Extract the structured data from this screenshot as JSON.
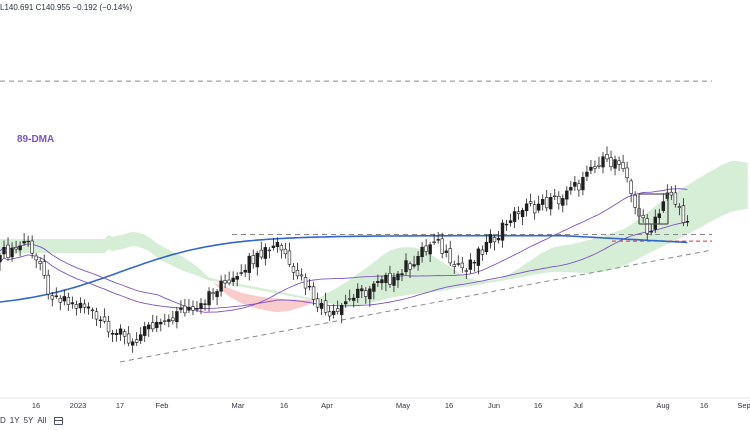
{
  "header": {
    "ohlc_text": "L140.691  C140.955  −0.192 (−0.14%)"
  },
  "toolbar": {
    "timeframes": [
      "D",
      "1Y",
      "5Y",
      "All"
    ]
  },
  "labels": {
    "ma": "89-DMA"
  },
  "colors": {
    "up": "#1e1e1e",
    "down": "#ffffff",
    "wick": "#1e1e1e",
    "ma200": "#3366cc",
    "ma_purple": "#7d54c7",
    "cloud_bull": "#cfeacf",
    "cloud_bear": "#f9c2c2",
    "dashed_gray": "#8a8a8a",
    "dashed_red": "#e03131",
    "box": "#555555"
  },
  "chart_data": {
    "type": "candlestick",
    "title": "",
    "x_tick_labels": [
      "16",
      "2023",
      "17",
      "Feb",
      "Mar",
      "16",
      "Apr",
      "May",
      "16",
      "Jun",
      "16",
      "Jul",
      "Aug",
      "16",
      "Sep"
    ],
    "y_range_approx": [
      126,
      152
    ],
    "resistance_level_approx": 151.9,
    "support_level_approx": 137.9,
    "red_dashed_level_approx": 137.3,
    "last_close": 140.955,
    "last_low": 140.691,
    "change": -0.192,
    "change_pct": -0.14,
    "close_path": [
      {
        "date": "2022-12-01",
        "close": 136.0
      },
      {
        "date": "2022-12-12",
        "close": 137.3
      },
      {
        "date": "2022-12-20",
        "close": 132.0
      },
      {
        "date": "2023-01-03",
        "close": 131.0
      },
      {
        "date": "2023-01-16",
        "close": 128.0
      },
      {
        "date": "2023-01-27",
        "close": 130.0
      },
      {
        "date": "2023-02-14",
        "close": 132.5
      },
      {
        "date": "2023-03-01",
        "close": 136.2
      },
      {
        "date": "2023-03-08",
        "close": 137.2
      },
      {
        "date": "2023-03-24",
        "close": 130.8
      },
      {
        "date": "2023-04-03",
        "close": 132.0
      },
      {
        "date": "2023-04-18",
        "close": 134.0
      },
      {
        "date": "2023-05-02",
        "close": 137.2
      },
      {
        "date": "2023-05-12",
        "close": 134.6
      },
      {
        "date": "2023-05-30",
        "close": 140.0
      },
      {
        "date": "2023-06-15",
        "close": 141.2
      },
      {
        "date": "2023-06-30",
        "close": 144.8
      },
      {
        "date": "2023-07-05",
        "close": 144.3
      },
      {
        "date": "2023-07-14",
        "close": 138.0
      },
      {
        "date": "2023-07-21",
        "close": 141.7
      },
      {
        "date": "2023-07-28",
        "close": 139.1
      },
      {
        "date": "2023-07-31",
        "close": 140.955
      }
    ]
  }
}
